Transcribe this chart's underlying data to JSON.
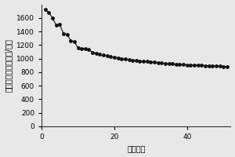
{
  "title": "",
  "xlabel": "循环次数",
  "ylabel": "放电比容量（毫安时/克）",
  "xlim": [
    0,
    52
  ],
  "ylim": [
    0,
    1800
  ],
  "yticks": [
    0,
    200,
    400,
    600,
    800,
    1000,
    1200,
    1400,
    1600
  ],
  "xticks": [
    0,
    20,
    40
  ],
  "background_color": "#e8e8e8",
  "dot_color": "#111111",
  "dot_size": 12,
  "line_color": "#111111",
  "line_width": 0.8,
  "data_x": [
    1,
    2,
    3,
    4,
    5,
    6,
    7,
    8,
    9,
    10,
    11,
    12,
    13,
    14,
    15,
    16,
    17,
    18,
    19,
    20,
    21,
    22,
    23,
    24,
    25,
    26,
    27,
    28,
    29,
    30,
    31,
    32,
    33,
    34,
    35,
    36,
    37,
    38,
    39,
    40,
    41,
    42,
    43,
    44,
    45,
    46,
    47,
    48,
    49,
    50,
    51
  ],
  "data_y": [
    1720,
    1680,
    1600,
    1490,
    1500,
    1370,
    1360,
    1265,
    1250,
    1155,
    1150,
    1145,
    1130,
    1090,
    1080,
    1060,
    1050,
    1040,
    1030,
    1020,
    1010,
    1000,
    990,
    980,
    975,
    970,
    965,
    960,
    955,
    950,
    945,
    940,
    935,
    930,
    925,
    920,
    915,
    912,
    910,
    907,
    905,
    903,
    900,
    898,
    896,
    893,
    891,
    889,
    887,
    885,
    883
  ]
}
